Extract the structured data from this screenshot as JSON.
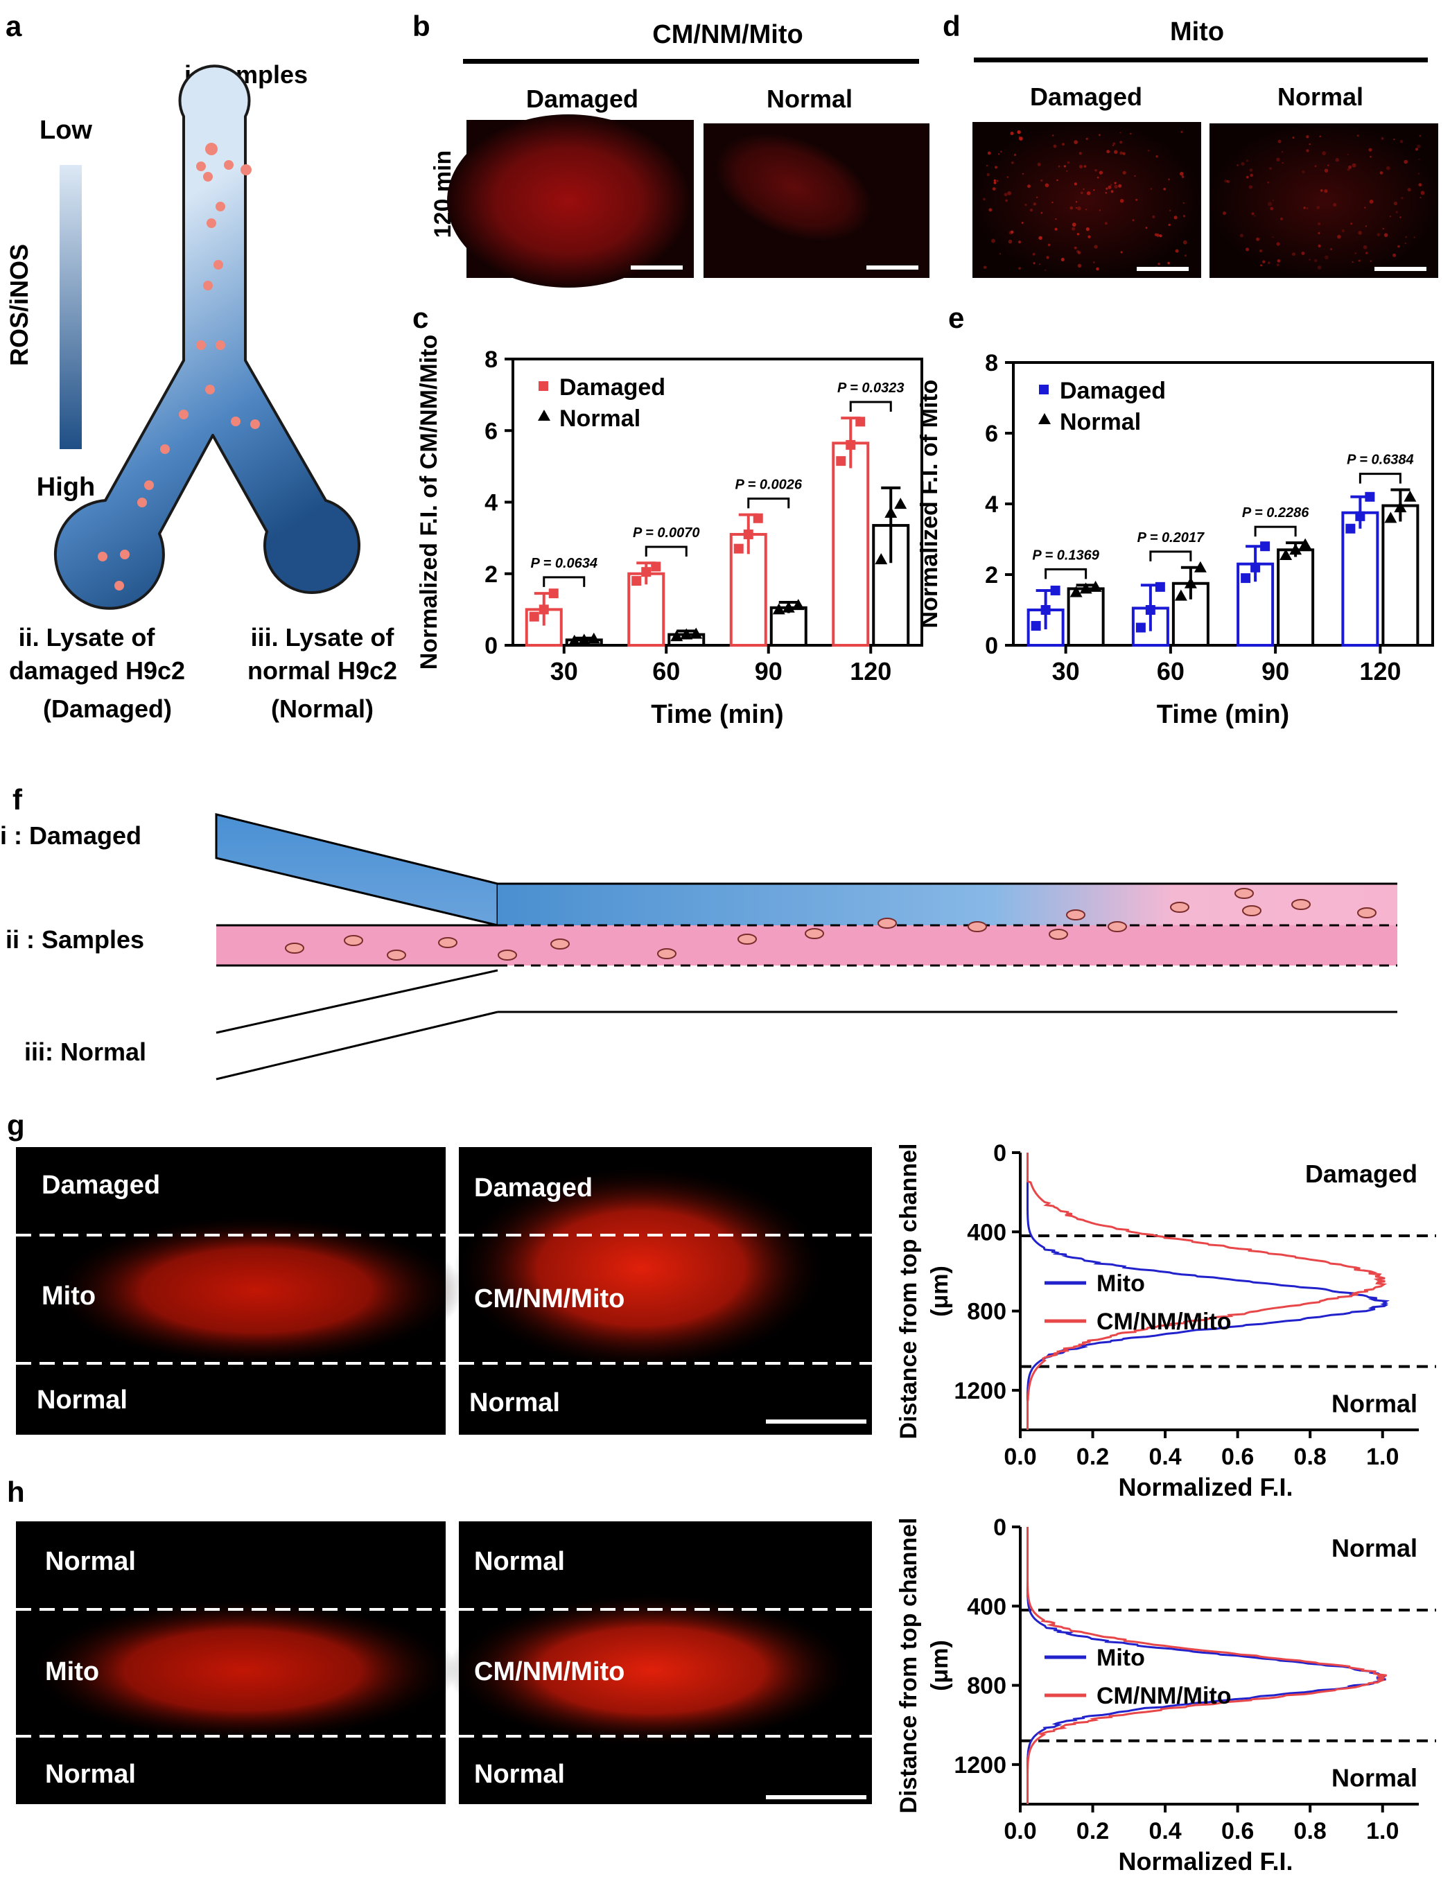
{
  "panel_letters": {
    "a": "a",
    "b": "b",
    "c": "c",
    "d": "d",
    "e": "e",
    "f": "f",
    "g": "g",
    "h": "h"
  },
  "panel_a": {
    "samples_label": "i. Samples",
    "gradient_low": "Low",
    "gradient_high": "High",
    "gradient_axis": "ROS/iNOS",
    "damaged_line1": "ii. Lysate of",
    "damaged_line2": "damaged H9c2",
    "damaged_line3": "(Damaged)",
    "normal_line1": "iii. Lysate of",
    "normal_line2": "normal H9c2",
    "normal_line3": "(Normal)"
  },
  "panel_b": {
    "title": "CM/NM/Mito",
    "col_damaged": "Damaged",
    "col_normal": "Normal",
    "row_label": "120 min"
  },
  "panel_d": {
    "title": "Mito",
    "col_damaged": "Damaged",
    "col_normal": "Normal"
  },
  "panel_f": {
    "damaged": "i : Damaged",
    "samples": "ii : Samples",
    "normal": "iii: Normal"
  },
  "panel_g": {
    "left": {
      "top": "Damaged",
      "middle": "Mito",
      "bottom": "Normal"
    },
    "right": {
      "top": "Damaged",
      "middle": "CM/NM/Mito",
      "bottom": "Normal"
    }
  },
  "panel_h": {
    "left": {
      "top": "Normal",
      "middle": "Mito",
      "bottom": "Normal"
    },
    "right": {
      "top": "Normal",
      "middle": "CM/NM/Mito",
      "bottom": "Normal"
    }
  },
  "colors": {
    "damaged_red": "#e8474a",
    "mito_blue": "#1a1ad6",
    "profile_red": "#e8474a",
    "profile_blue": "#2222cc"
  },
  "chart_data": [
    {
      "id": "c",
      "type": "bar",
      "ylabel": "Normalized F.I. of CM/NM/Mito",
      "xlabel": "Time (min)",
      "categories": [
        "30",
        "60",
        "90",
        "120"
      ],
      "ylim": [
        0,
        8
      ],
      "yticks": [
        "0",
        "2",
        "4",
        "6",
        "8"
      ],
      "legend": "top-left",
      "series": [
        {
          "name": "Damaged",
          "values": [
            1.0,
            2.0,
            3.1,
            5.65
          ],
          "errors": [
            0.45,
            0.3,
            0.55,
            0.7
          ],
          "points": [
            [
              0.8,
              1.0,
              1.45
            ],
            [
              1.8,
              2.05,
              2.2
            ],
            [
              2.7,
              3.1,
              3.55
            ],
            [
              5.15,
              5.6,
              6.25
            ]
          ]
        },
        {
          "name": "Normal",
          "values": [
            0.15,
            0.3,
            1.05,
            3.35
          ],
          "errors": [
            0.05,
            0.1,
            0.15,
            1.05
          ],
          "points": [
            [
              0.12,
              0.15,
              0.18
            ],
            [
              0.25,
              0.3,
              0.32
            ],
            [
              1.0,
              1.05,
              1.12
            ],
            [
              2.4,
              3.7,
              3.95
            ]
          ]
        }
      ],
      "pvalues": [
        "P = 0.0634",
        "P = 0.0070",
        "P = 0.0026",
        "P = 0.0323"
      ]
    },
    {
      "id": "e",
      "type": "bar",
      "ylabel": "Normalized F.I. of Mito",
      "xlabel": "Time (min)",
      "categories": [
        "30",
        "60",
        "90",
        "120"
      ],
      "ylim": [
        0,
        8
      ],
      "yticks": [
        "0",
        "2",
        "4",
        "6",
        "8"
      ],
      "legend": "top-left",
      "series": [
        {
          "name": "Damaged",
          "values": [
            1.0,
            1.05,
            2.3,
            3.75
          ],
          "errors": [
            0.55,
            0.65,
            0.5,
            0.45
          ],
          "points": [
            [
              0.55,
              1.0,
              1.55
            ],
            [
              0.5,
              1.0,
              1.65
            ],
            [
              1.9,
              2.2,
              2.8
            ],
            [
              3.3,
              3.65,
              4.2
            ]
          ]
        },
        {
          "name": "Normal",
          "values": [
            1.6,
            1.75,
            2.7,
            3.95
          ],
          "errors": [
            0.1,
            0.45,
            0.2,
            0.45
          ],
          "points": [
            [
              1.5,
              1.6,
              1.65
            ],
            [
              1.4,
              1.75,
              2.2
            ],
            [
              2.55,
              2.7,
              2.85
            ],
            [
              3.6,
              3.9,
              4.2
            ]
          ]
        }
      ],
      "pvalues": [
        "P = 0.1369",
        "P = 0.2017",
        "P = 0.2286",
        "P = 0.6384"
      ]
    },
    {
      "id": "g",
      "type": "line",
      "ylabel": "Distance from top channel (μm)",
      "xlabel": "Normalized F.I.",
      "xlim": [
        0,
        1.1
      ],
      "ylim": [
        0,
        1400
      ],
      "xticks": [
        "0.0",
        "0.2",
        "0.4",
        "0.6",
        "0.8",
        "1.0"
      ],
      "yticks": [
        "0",
        "400",
        "800",
        "1200"
      ],
      "region_top": "Damaged",
      "region_bottom": "Normal",
      "dashed_lines_um": [
        420,
        1080
      ],
      "legend": "center-left",
      "series": [
        {
          "name": "Mito",
          "color": "#2222cc",
          "peak_um": 760,
          "width_um": 160
        },
        {
          "name": "CM/NM/Mito",
          "color": "#e8474a",
          "peak_um": 650,
          "width_um": 230
        }
      ]
    },
    {
      "id": "h",
      "type": "line",
      "ylabel": "Distance from top channel (μm)",
      "xlabel": "Normalized F.I.",
      "xlim": [
        0,
        1.1
      ],
      "ylim": [
        0,
        1400
      ],
      "xticks": [
        "0.0",
        "0.2",
        "0.4",
        "0.6",
        "0.8",
        "1.0"
      ],
      "yticks": [
        "0",
        "400",
        "800",
        "1200"
      ],
      "region_top": "Normal",
      "region_bottom": "Normal",
      "dashed_lines_um": [
        420,
        1080
      ],
      "legend": "center-left",
      "series": [
        {
          "name": "Mito",
          "color": "#2222cc",
          "peak_um": 760,
          "width_um": 150
        },
        {
          "name": "CM/NM/Mito",
          "color": "#e8474a",
          "peak_um": 760,
          "width_um": 165
        }
      ]
    }
  ]
}
